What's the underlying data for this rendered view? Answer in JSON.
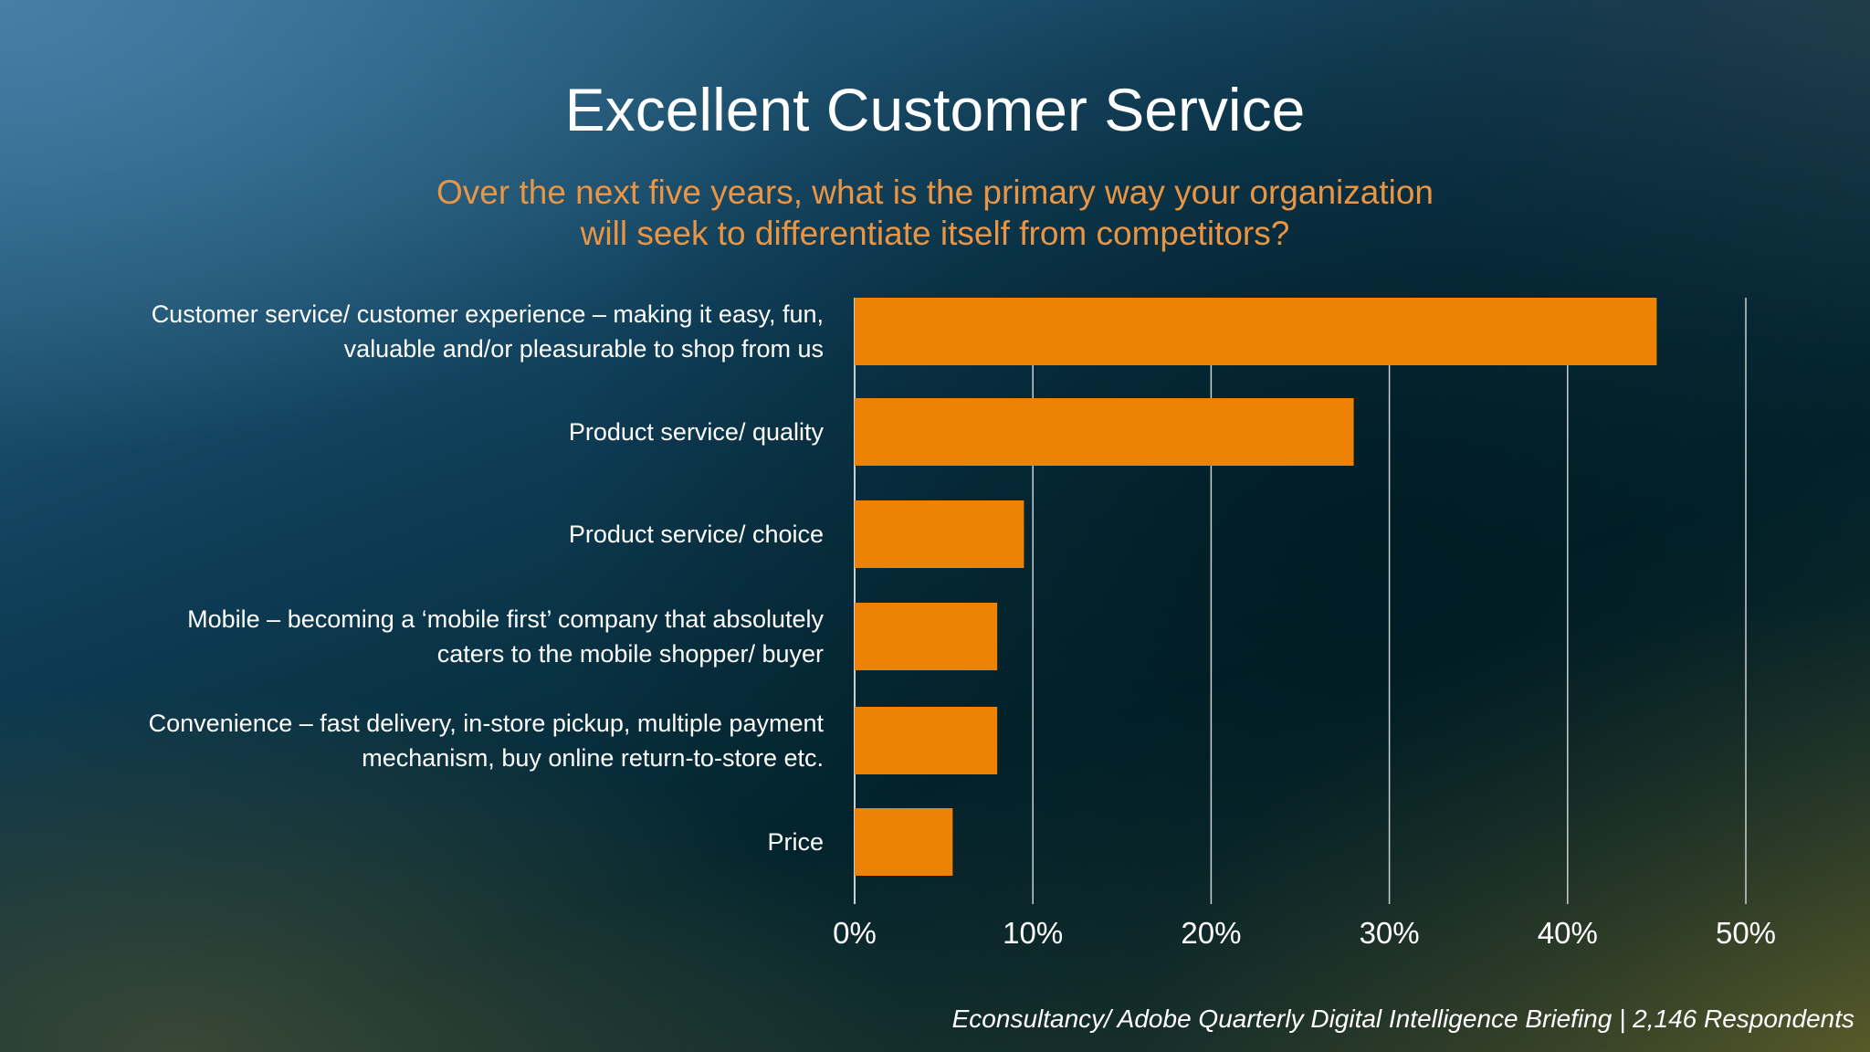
{
  "title": "Excellent Customer Service",
  "subtitle": {
    "line1": "Over the next five years, what is the primary way your organization",
    "line2": "will seek to differentiate itself from competitors?"
  },
  "source": "Econsultancy/ Adobe Quarterly Digital Intelligence Briefing  |  2,146 Respondents",
  "colors": {
    "bar": "#ee8205",
    "title": "#ffffff",
    "subtitle": "#e89545",
    "gridline": "#c9d0d2"
  },
  "chart_data": {
    "type": "bar",
    "orientation": "horizontal",
    "title": "Excellent Customer Service",
    "subtitle": "Over the next five years, what is the primary way your organization will seek to differentiate itself from competitors?",
    "categories": [
      [
        "Customer service/ customer experience – making it easy, fun,",
        "valuable and/or pleasurable to shop from us"
      ],
      [
        "Product service/ quality"
      ],
      [
        "Product service/ choice"
      ],
      [
        "Mobile – becoming a ‘mobile first’ company that absolutely",
        "caters to the mobile shopper/ buyer"
      ],
      [
        "Convenience – fast delivery, in-store pickup, multiple payment",
        "mechanism, buy online return-to-store etc."
      ],
      [
        "Price"
      ]
    ],
    "values": [
      45,
      28,
      9.5,
      8,
      8,
      5.5
    ],
    "unit": "%",
    "xlim": [
      0,
      50
    ],
    "ticks": [
      "0%",
      "10%",
      "20%",
      "30%",
      "40%",
      "50%"
    ],
    "tick_values": [
      0,
      10,
      20,
      30,
      40,
      50
    ],
    "grid": true,
    "legend": "none"
  }
}
